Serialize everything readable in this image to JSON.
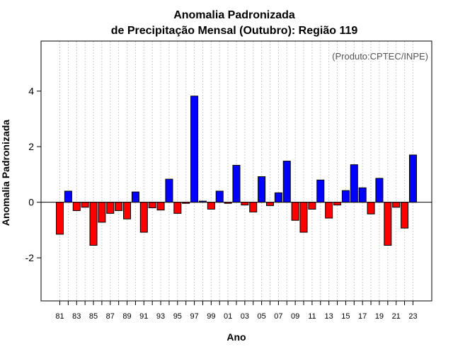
{
  "chart_data": {
    "type": "bar",
    "title_line1": "Anomalia Padronizada",
    "title_line2": "de Precipitação Mensal (Outubro): Região 119",
    "xlabel": "Ano",
    "ylabel": "Anomalia Padronizada",
    "annotation": "(Produto:CPTEC/INPE)",
    "ylim": [
      -3.55,
      5.8
    ],
    "yticks": [
      -2,
      0,
      2,
      4
    ],
    "ytick_labels": [
      "-2",
      "0",
      "2",
      "4"
    ],
    "years": [
      "81",
      "82",
      "83",
      "84",
      "85",
      "86",
      "87",
      "88",
      "89",
      "90",
      "91",
      "92",
      "93",
      "94",
      "95",
      "96",
      "97",
      "98",
      "99",
      "00",
      "01",
      "02",
      "03",
      "04",
      "05",
      "06",
      "07",
      "08",
      "09",
      "10",
      "11",
      "12",
      "13",
      "14",
      "15",
      "16",
      "17",
      "18",
      "19",
      "20",
      "21",
      "22",
      "23"
    ],
    "xtick_labels": [
      "81",
      "83",
      "85",
      "87",
      "89",
      "91",
      "93",
      "95",
      "97",
      "99",
      "01",
      "03",
      "05",
      "07",
      "09",
      "11",
      "13",
      "15",
      "17",
      "19",
      "21",
      "23"
    ],
    "values": [
      -1.15,
      0.4,
      -0.3,
      -0.18,
      -1.55,
      -0.72,
      -0.4,
      -0.3,
      -0.6,
      0.37,
      -1.08,
      -0.2,
      -0.28,
      0.83,
      -0.4,
      -0.04,
      3.82,
      0.04,
      -0.25,
      0.4,
      -0.04,
      1.33,
      -0.1,
      -0.35,
      0.92,
      -0.12,
      0.34,
      1.48,
      -0.65,
      -1.08,
      -0.25,
      0.8,
      -0.57,
      -0.1,
      0.42,
      1.35,
      0.52,
      -0.42,
      0.86,
      -1.55,
      -0.18,
      -0.93,
      1.7
    ],
    "positive_color": "#0000ff",
    "negative_color": "#ff0000",
    "grid": "vertical dotted"
  }
}
